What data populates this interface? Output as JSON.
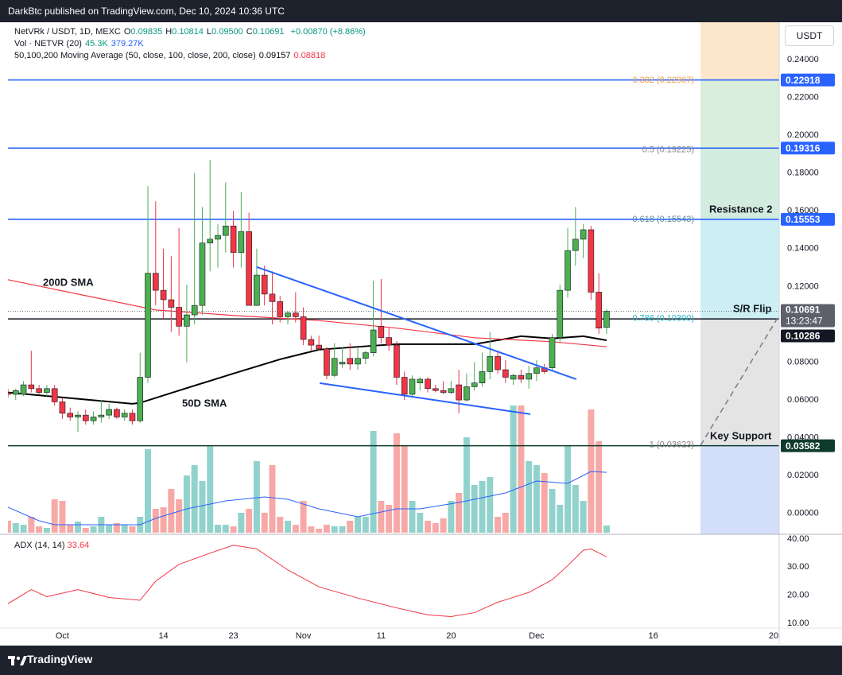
{
  "header": {
    "publisher": "DarkBtc published on TradingView.com, Dec 10, 2024 10:36 UTC",
    "brand": "TradingView"
  },
  "chart_data": [
    {
      "type": "candlestick",
      "symbol": "NetVRk / USDT, 1D, MEXC",
      "currency": "USDT",
      "readout": [
        {
          "key": "O",
          "value": "0.09835"
        },
        {
          "key": "H",
          "value": "0.10814"
        },
        {
          "key": "L",
          "value": "0.09500"
        },
        {
          "key": "C",
          "value": "0.10691"
        }
      ],
      "change": "+0.00870 (+8.86%)",
      "up_color": "#4caf50",
      "down_color": "#f23645",
      "open": [
        0.064,
        0.063,
        0.063,
        0.068,
        0.066,
        0.064,
        0.066,
        0.059,
        0.053,
        0.051,
        0.052,
        0.049,
        0.051,
        0.052,
        0.055,
        0.051,
        0.053,
        0.049,
        0.072,
        0.127,
        0.118,
        0.113,
        0.109,
        0.099,
        0.105,
        0.11,
        0.143,
        0.145,
        0.147,
        0.152,
        0.138,
        0.149,
        0.11,
        0.126,
        0.116,
        0.112,
        0.104,
        0.106,
        0.104,
        0.092,
        0.089,
        0.087,
        0.073,
        0.079,
        0.082,
        0.079,
        0.082,
        0.085,
        0.099,
        0.093,
        0.089,
        0.072,
        0.063,
        0.069,
        0.071,
        0.066,
        0.065,
        0.064,
        0.068,
        0.06,
        0.067,
        0.069,
        0.075,
        0.083,
        0.076,
        0.071,
        0.073,
        0.071,
        0.074,
        0.077,
        0.077,
        0.093,
        0.118,
        0.139,
        0.145,
        0.15,
        0.117,
        0.09835
      ],
      "high": [
        0.066,
        0.066,
        0.07,
        0.086,
        0.068,
        0.068,
        0.068,
        0.061,
        0.056,
        0.054,
        0.055,
        0.054,
        0.06,
        0.058,
        0.056,
        0.055,
        0.055,
        0.085,
        0.173,
        0.165,
        0.14,
        0.136,
        0.151,
        0.121,
        0.18,
        0.162,
        0.187,
        0.153,
        0.175,
        0.16,
        0.17,
        0.159,
        0.14,
        0.131,
        0.128,
        0.115,
        0.107,
        0.117,
        0.109,
        0.094,
        0.094,
        0.088,
        0.09,
        0.088,
        0.09,
        0.088,
        0.086,
        0.123,
        0.124,
        0.098,
        0.091,
        0.075,
        0.073,
        0.072,
        0.072,
        0.068,
        0.07,
        0.07,
        0.076,
        0.074,
        0.08,
        0.085,
        0.096,
        0.086,
        0.081,
        0.074,
        0.076,
        0.078,
        0.081,
        0.079,
        0.095,
        0.121,
        0.151,
        0.162,
        0.153,
        0.152,
        0.127,
        0.10814
      ],
      "low": [
        0.061,
        0.06,
        0.062,
        0.064,
        0.063,
        0.062,
        0.057,
        0.05,
        0.049,
        0.043,
        0.047,
        0.047,
        0.048,
        0.05,
        0.05,
        0.049,
        0.047,
        0.048,
        0.069,
        0.11,
        0.103,
        0.096,
        0.094,
        0.08,
        0.1,
        0.105,
        0.128,
        0.13,
        0.138,
        0.13,
        0.13,
        0.11,
        0.11,
        0.11,
        0.1,
        0.101,
        0.1,
        0.101,
        0.089,
        0.086,
        0.086,
        0.071,
        0.072,
        0.077,
        0.076,
        0.076,
        0.079,
        0.083,
        0.09,
        0.086,
        0.068,
        0.06,
        0.062,
        0.065,
        0.064,
        0.064,
        0.063,
        0.063,
        0.053,
        0.059,
        0.065,
        0.067,
        0.071,
        0.074,
        0.069,
        0.068,
        0.069,
        0.066,
        0.07,
        0.074,
        0.075,
        0.09,
        0.114,
        0.131,
        0.135,
        0.113,
        0.095,
        0.095
      ],
      "close": [
        0.063,
        0.065,
        0.068,
        0.066,
        0.064,
        0.066,
        0.059,
        0.053,
        0.051,
        0.052,
        0.049,
        0.051,
        0.052,
        0.055,
        0.051,
        0.053,
        0.049,
        0.072,
        0.127,
        0.118,
        0.113,
        0.109,
        0.099,
        0.105,
        0.11,
        0.143,
        0.145,
        0.147,
        0.152,
        0.138,
        0.149,
        0.11,
        0.126,
        0.116,
        0.112,
        0.104,
        0.106,
        0.104,
        0.092,
        0.089,
        0.087,
        0.073,
        0.082,
        0.08,
        0.079,
        0.082,
        0.085,
        0.097,
        0.093,
        0.089,
        0.072,
        0.063,
        0.071,
        0.071,
        0.066,
        0.065,
        0.064,
        0.066,
        0.06,
        0.067,
        0.069,
        0.075,
        0.083,
        0.076,
        0.072,
        0.073,
        0.071,
        0.074,
        0.077,
        0.075,
        0.093,
        0.118,
        0.139,
        0.145,
        0.15,
        0.117,
        0.098,
        0.10691
      ],
      "last_price_label": "0.10691",
      "countdown": "13:23:47",
      "volume": {
        "title": "Vol · NETVR (20)",
        "up_color": "#92d2cc",
        "down_color": "#f7a9a7",
        "values": [
          75000,
          60000,
          50000,
          100000,
          40000,
          30000,
          210000,
          200000,
          50000,
          70000,
          30000,
          40000,
          100000,
          50000,
          60000,
          50000,
          40000,
          100000,
          525000,
          150000,
          160000,
          275000,
          210000,
          360000,
          425000,
          325000,
          550000,
          50000,
          50000,
          40000,
          125000,
          150000,
          450000,
          125000,
          425000,
          100000,
          75000,
          50000,
          200000,
          40000,
          25000,
          50000,
          40000,
          40000,
          75000,
          100000,
          100000,
          640000,
          200000,
          175000,
          625000,
          550000,
          200000,
          125000,
          75000,
          60000,
          90000,
          200000,
          250000,
          600000,
          300000,
          325000,
          350000,
          100000,
          125000,
          800000,
          800000,
          450000,
          425000,
          375000,
          275000,
          175000,
          550000,
          300000,
          200000,
          775000,
          575000,
          45300
        ],
        "value_label": "45.3K",
        "label_color": "#089981",
        "ma": {
          "color": "#2962ff",
          "x": [
            0,
            4,
            6,
            17,
            19,
            23,
            28,
            33,
            36,
            40,
            45,
            50,
            53,
            58,
            64,
            68,
            72,
            75,
            77
          ],
          "values": [
            160000,
            75000,
            50000,
            50000,
            90000,
            150000,
            200000,
            225000,
            210000,
            150000,
            100000,
            150000,
            150000,
            190000,
            250000,
            325000,
            310000,
            385000,
            379270
          ],
          "value_label": "379.27K"
        }
      },
      "moving_averages": {
        "title": "50,100,200 Moving Average (50, close, 100, close, 200, close)",
        "series": [
          {
            "name": "50D SMA",
            "color": "#000000",
            "x": [
              0,
              8,
              16,
              17,
              22,
              29,
              35,
              40,
              47,
              50,
              60,
              66,
              70,
              74,
              77
            ],
            "values": [
              0.064,
              0.061,
              0.058,
              0.0585,
              0.065,
              0.074,
              0.0815,
              0.0866,
              0.0887,
              0.0895,
              0.0895,
              0.0937,
              0.0925,
              0.0937,
              0.09157
            ],
            "value_label": "0.09157"
          },
          {
            "name": "200D SMA",
            "color": "#f23645",
            "x": [
              0,
              9,
              19,
              29,
              40,
              50,
              60,
              70,
              77
            ],
            "values": [
              0.1236,
              0.116,
              0.1076,
              0.1047,
              0.102,
              0.098,
              0.0929,
              0.0908,
              0.08818
            ],
            "value_label": "0.08818"
          }
        ]
      },
      "levels": [
        {
          "value": 0.22918,
          "label": "0.22918",
          "color": "#2962ff"
        },
        {
          "value": 0.19316,
          "label": "0.19316",
          "color": "#2962ff"
        },
        {
          "value": 0.15553,
          "label": "0.15553",
          "color": "#2962ff"
        },
        {
          "value": 0.10286,
          "label": "0.10286",
          "color": "#131722"
        },
        {
          "value": 0.03582,
          "label": "0.03582",
          "color": "#0f3b2c"
        }
      ],
      "fib": [
        {
          "value": 0.22907,
          "label": "0.382 (0.22907)",
          "color": "#f0a04b"
        },
        {
          "value": 0.19225,
          "label": "0.5 (0.19225)",
          "color": "#8a8a8a"
        },
        {
          "value": 0.15543,
          "label": "0.618 (0.15543)",
          "color": "#5f8d9a"
        },
        {
          "value": 0.103,
          "label": "0.786 (0.10300)",
          "color": "#22b5c9"
        },
        {
          "value": 0.03623,
          "label": "1 (0.03623)",
          "color": "#808080"
        }
      ],
      "zone_colors": [
        "#fde7cb",
        "#d9eedb",
        "#d3ece0",
        "#cdeff4",
        "#e4e4e4",
        "#d3defa"
      ],
      "trendlines": [
        {
          "color": "#2962ff",
          "x": [
            32.0,
            73.1
          ],
          "values": [
            0.1303,
            0.071
          ]
        },
        {
          "color": "#2962ff",
          "x": [
            40.1,
            67.2
          ],
          "values": [
            0.0689,
            0.0525
          ]
        },
        {
          "color": "#787b86",
          "dashed": true,
          "x": [
            89.1,
            99.0
          ],
          "values": [
            0.0361,
            0.1034
          ]
        }
      ],
      "annotations": [
        "Resistance 2",
        "S/R Flip",
        "Key Support"
      ],
      "xlim": [
        0,
        99.2
      ],
      "xticks": [
        {
          "value": 7,
          "label": "Oct"
        },
        {
          "value": 20,
          "label": "14"
        },
        {
          "value": 29,
          "label": "23"
        },
        {
          "value": 38,
          "label": "Nov"
        },
        {
          "value": 48,
          "label": "11"
        },
        {
          "value": 57,
          "label": "20"
        },
        {
          "value": 68,
          "label": "Dec"
        },
        {
          "value": 83,
          "label": "16"
        },
        {
          "value": 99,
          "label": "20"
        }
      ],
      "ylim": [
        -0.011,
        0.2597
      ],
      "yticks": [
        {
          "value": 0.24,
          "label": "0.24000"
        },
        {
          "value": 0.22,
          "label": "0.22000"
        },
        {
          "value": 0.2,
          "label": "0.20000"
        },
        {
          "value": 0.18,
          "label": "0.18000"
        },
        {
          "value": 0.16,
          "label": "0.16000"
        },
        {
          "value": 0.14,
          "label": "0.14000"
        },
        {
          "value": 0.12,
          "label": "0.12000"
        },
        {
          "value": 0.1,
          "label": "0.10000"
        },
        {
          "value": 0.08,
          "label": "0.08000"
        },
        {
          "value": 0.06,
          "label": "0.06000"
        },
        {
          "value": 0.04,
          "label": "0.04000"
        },
        {
          "value": 0.02,
          "label": "0.02000"
        },
        {
          "value": 0,
          "label": "0.00000"
        }
      ]
    },
    {
      "type": "line",
      "title": "ADX (14, 14)",
      "value_label": "33.64",
      "color": "#f23645",
      "x": [
        0,
        3,
        5,
        9,
        13,
        17,
        19,
        22,
        26,
        29,
        32,
        36,
        40,
        45,
        50,
        54,
        57,
        60,
        63,
        67,
        70,
        72,
        74,
        75,
        77
      ],
      "values": [
        17,
        22,
        19.5,
        22,
        19.2,
        18.2,
        25,
        31,
        35,
        37.8,
        36.5,
        29,
        23,
        19,
        15.5,
        13,
        12.4,
        13.8,
        17.5,
        21,
        25.5,
        30.5,
        36,
        36.5,
        33.64
      ],
      "ylim": [
        8.3,
        41.7
      ],
      "yticks": [
        {
          "value": 40,
          "label": "40.00"
        },
        {
          "value": 30,
          "label": "30.00"
        },
        {
          "value": 20,
          "label": "20.00"
        },
        {
          "value": 10,
          "label": "10.00"
        }
      ]
    }
  ]
}
